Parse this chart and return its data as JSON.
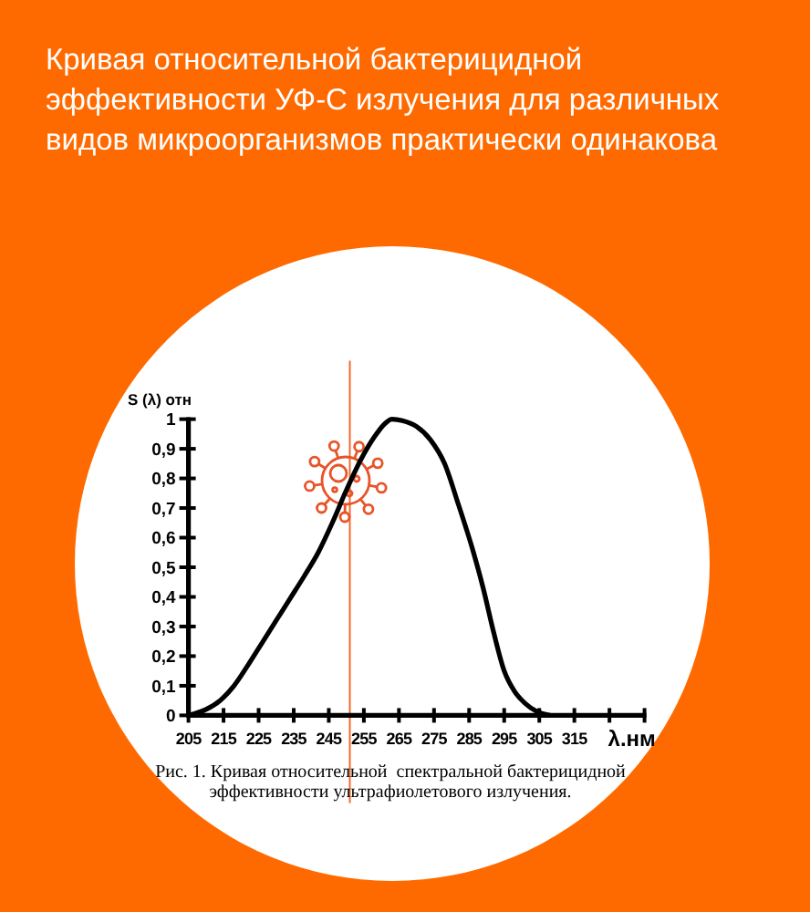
{
  "chart_data": {
    "type": "line",
    "title": "Кривая относительной бактерицидной эффективности УФ-С излучения для различных видов микроорганизмов практически одинакова",
    "ylabel": "S (λ) отн",
    "xlabel": "λ.нм",
    "annotations": [
      "Рис. 1. Кривая относительной  спектральной бактерицидной эффективности ультрафиолетового излучения."
    ],
    "x": [
      205,
      210,
      214,
      218,
      222,
      226,
      230,
      234,
      238,
      242,
      246,
      250,
      254,
      258,
      261,
      263,
      266,
      270,
      274,
      278,
      282,
      286,
      289,
      292,
      295,
      298,
      301,
      304,
      308
    ],
    "series": [
      {
        "color": "#000000",
        "values": [
          0,
          0.02,
          0.05,
          0.1,
          0.17,
          0.245,
          0.32,
          0.395,
          0.47,
          0.55,
          0.65,
          0.76,
          0.86,
          0.94,
          0.985,
          1.0,
          0.995,
          0.975,
          0.93,
          0.85,
          0.71,
          0.56,
          0.43,
          0.28,
          0.15,
          0.08,
          0.04,
          0.015,
          0
        ]
      }
    ],
    "xlim": [
      205,
      335
    ],
    "xticks": [
      205,
      215,
      225,
      235,
      245,
      255,
      265,
      275,
      285,
      295,
      305,
      315,
      {
        "value": 325,
        "label": null
      },
      {
        "value": 335,
        "label": null
      }
    ],
    "ylim": [
      0,
      1
    ],
    "yticks": [
      0,
      {
        "value": 0.1,
        "label": "0,1"
      },
      {
        "value": 0.2,
        "label": "0,2"
      },
      {
        "value": 0.3,
        "label": "0,3"
      },
      {
        "value": 0.4,
        "label": "0,4"
      },
      {
        "value": 0.5,
        "label": "0,5"
      },
      {
        "value": 0.6,
        "label": "0,6"
      },
      {
        "value": 0.7,
        "label": "0,7"
      },
      {
        "value": 0.8,
        "label": "0,8"
      },
      {
        "value": 0.9,
        "label": "0,9"
      },
      1
    ],
    "ref_lines": [
      {
        "axis": "x",
        "value": 251,
        "color": "#f26a2e"
      }
    ]
  }
}
